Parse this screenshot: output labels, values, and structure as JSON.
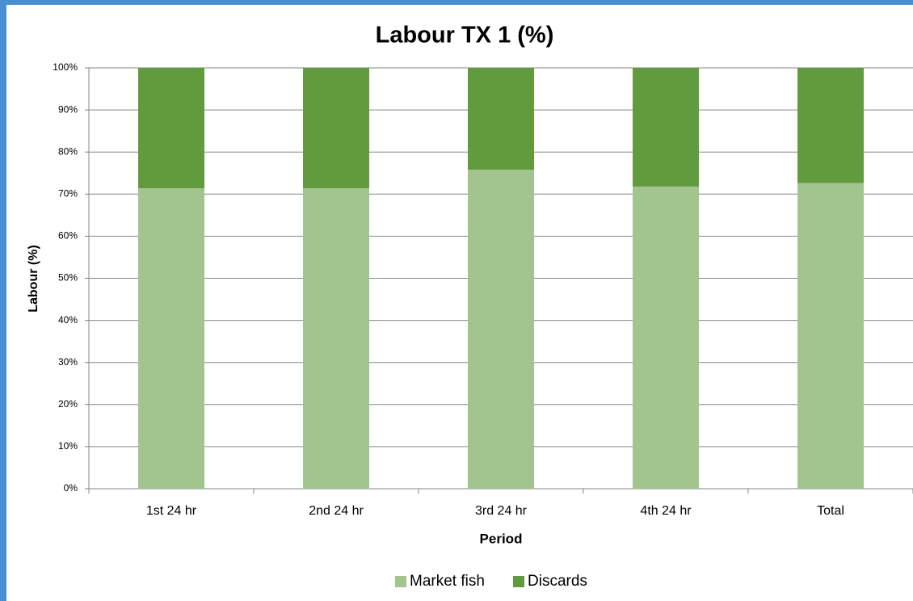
{
  "chart_data": {
    "type": "bar",
    "stacked": true,
    "title": "Labour TX 1 (%)",
    "x_label": "Period",
    "y_label": "Labour (%)",
    "categories": [
      "1st 24 hr",
      "2nd 24 hr",
      "3rd 24 hr",
      "4th 24 hr",
      "Total"
    ],
    "series": [
      {
        "name": "Market fish",
        "color": "#a2c48f",
        "values": [
          71.4,
          71.4,
          75.8,
          71.8,
          72.6
        ]
      },
      {
        "name": "Discards",
        "color": "#629a3e",
        "values": [
          28.6,
          28.6,
          24.2,
          28.2,
          27.4
        ]
      }
    ],
    "ylim": [
      0,
      100
    ],
    "yticks": [
      {
        "value": 0,
        "label": "0%"
      },
      {
        "value": 10,
        "label": "10%"
      },
      {
        "value": 20,
        "label": "20%"
      },
      {
        "value": 30,
        "label": "30%"
      },
      {
        "value": 40,
        "label": "40%"
      },
      {
        "value": 50,
        "label": "50%"
      },
      {
        "value": 60,
        "label": "60%"
      },
      {
        "value": 70,
        "label": "70%"
      },
      {
        "value": 80,
        "label": "80%"
      },
      {
        "value": 90,
        "label": "90%"
      },
      {
        "value": 100,
        "label": "100%"
      }
    ],
    "grid": true,
    "legend": "bottom"
  }
}
